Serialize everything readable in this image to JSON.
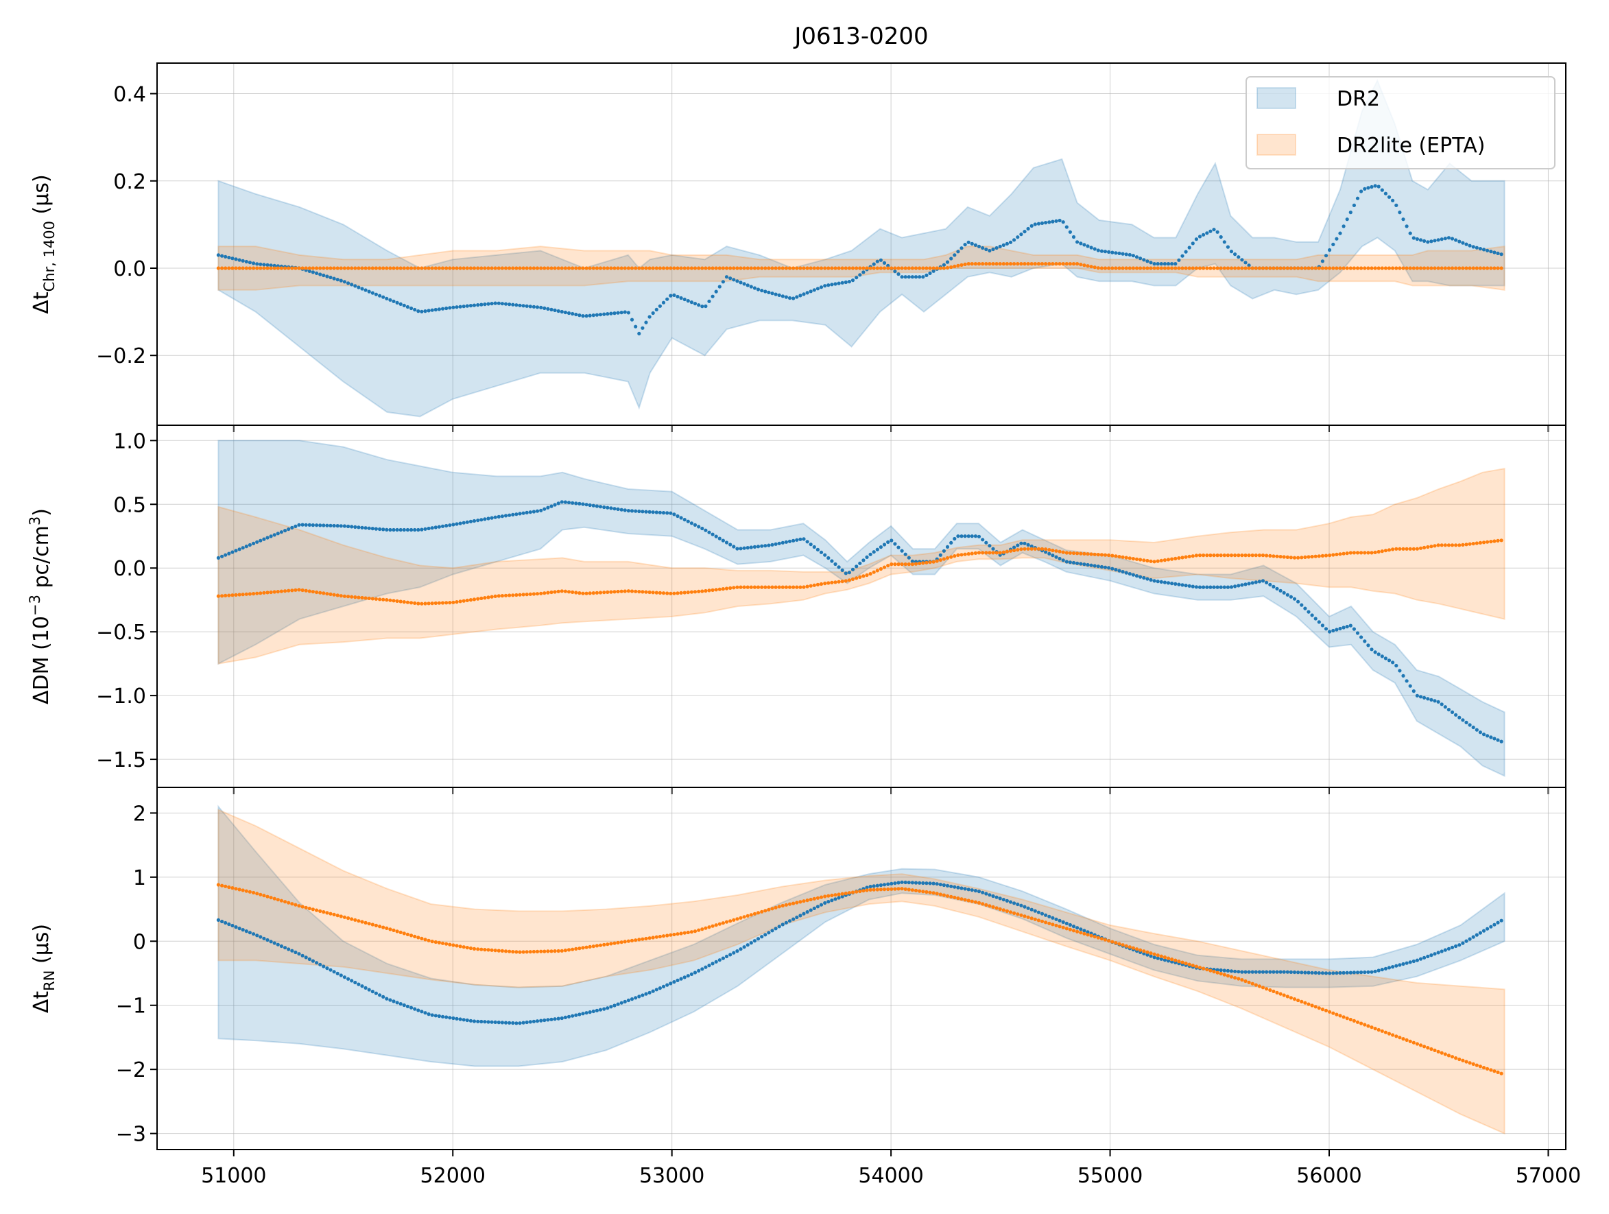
{
  "figure_title": "J0613-0200",
  "colors": {
    "dr2": "#1f77b4",
    "dr2lite": "#ff7f0e"
  },
  "legend": {
    "placement": "top-right",
    "entries": [
      "DR2",
      "DR2lite (EPTA)"
    ]
  },
  "x_ticks": [
    51000,
    52000,
    53000,
    54000,
    55000,
    56000,
    57000
  ],
  "x_tick_labels": [
    "51000",
    "52000",
    "53000",
    "54000",
    "55000",
    "56000",
    "57000"
  ],
  "chart_data": [
    {
      "type": "area",
      "ylabel": {
        "main": "Δt",
        "sub": "Chr, 1400",
        "tail": " (μs)"
      },
      "grid": true,
      "xlim": [
        50650,
        57080
      ],
      "ylim": [
        -0.36,
        0.47
      ],
      "yticks": [
        -0.2,
        0.0,
        0.2,
        0.4
      ],
      "ytick_labels": [
        "−0.2",
        "0.0",
        "0.2",
        "0.4"
      ],
      "x": [
        50930,
        51100,
        51300,
        51500,
        51700,
        51850,
        52000,
        52200,
        52400,
        52600,
        52800,
        52850,
        52900,
        53000,
        53150,
        53250,
        53400,
        53550,
        53700,
        53820,
        53950,
        54050,
        54150,
        54250,
        54350,
        54450,
        54550,
        54650,
        54780,
        54850,
        54950,
        55100,
        55200,
        55300,
        55400,
        55480,
        55550,
        55650,
        55750,
        55850,
        55950,
        56050,
        56150,
        56220,
        56300,
        56380,
        56450,
        56550,
        56650,
        56800
      ],
      "series": [
        {
          "name": "DR2",
          "values": [
            0.03,
            0.01,
            0.0,
            -0.03,
            -0.07,
            -0.1,
            -0.09,
            -0.08,
            -0.09,
            -0.11,
            -0.1,
            -0.15,
            -0.11,
            -0.06,
            -0.09,
            -0.02,
            -0.05,
            -0.07,
            -0.04,
            -0.03,
            0.02,
            -0.02,
            -0.02,
            0.01,
            0.06,
            0.04,
            0.06,
            0.1,
            0.11,
            0.06,
            0.04,
            0.03,
            0.01,
            0.01,
            0.07,
            0.09,
            0.04,
            0.0,
            0.0,
            0.0,
            0.0,
            0.08,
            0.18,
            0.19,
            0.15,
            0.07,
            0.06,
            0.07,
            0.05,
            0.03
          ],
          "lower": [
            -0.05,
            -0.1,
            -0.18,
            -0.26,
            -0.33,
            -0.34,
            -0.3,
            -0.27,
            -0.24,
            -0.24,
            -0.26,
            -0.32,
            -0.24,
            -0.16,
            -0.2,
            -0.14,
            -0.12,
            -0.12,
            -0.13,
            -0.18,
            -0.1,
            -0.06,
            -0.1,
            -0.06,
            -0.02,
            -0.01,
            -0.02,
            0.0,
            0.01,
            -0.02,
            -0.03,
            -0.03,
            -0.04,
            -0.04,
            0.0,
            0.01,
            -0.04,
            -0.07,
            -0.05,
            -0.06,
            -0.05,
            -0.01,
            0.05,
            0.07,
            0.04,
            -0.03,
            -0.03,
            -0.04,
            -0.04,
            -0.04
          ],
          "upper": [
            0.2,
            0.17,
            0.14,
            0.1,
            0.04,
            0.0,
            0.02,
            0.03,
            0.04,
            0.0,
            0.03,
            0.0,
            0.02,
            0.03,
            0.02,
            0.05,
            0.03,
            0.0,
            0.02,
            0.04,
            0.09,
            0.07,
            0.08,
            0.09,
            0.14,
            0.12,
            0.17,
            0.23,
            0.25,
            0.15,
            0.11,
            0.1,
            0.07,
            0.07,
            0.17,
            0.24,
            0.12,
            0.07,
            0.07,
            0.06,
            0.06,
            0.18,
            0.36,
            0.43,
            0.33,
            0.2,
            0.18,
            0.24,
            0.2,
            0.2
          ]
        },
        {
          "name": "DR2lite (EPTA)",
          "values": [
            0.0,
            0.0,
            0.0,
            0.0,
            0.0,
            0.0,
            0.0,
            0.0,
            0.0,
            0.0,
            0.0,
            0.0,
            0.0,
            0.0,
            0.0,
            0.0,
            0.0,
            0.0,
            0.0,
            0.0,
            0.0,
            0.0,
            0.0,
            0.0,
            0.01,
            0.01,
            0.01,
            0.01,
            0.01,
            0.01,
            0.0,
            0.0,
            0.0,
            0.0,
            0.0,
            0.0,
            0.0,
            0.0,
            0.0,
            0.0,
            0.0,
            0.0,
            0.0,
            0.0,
            0.0,
            0.0,
            0.0,
            0.0,
            0.0,
            0.0
          ],
          "lower": [
            -0.05,
            -0.05,
            -0.04,
            -0.04,
            -0.04,
            -0.04,
            -0.04,
            -0.04,
            -0.04,
            -0.04,
            -0.03,
            -0.03,
            -0.03,
            -0.03,
            -0.03,
            -0.03,
            -0.02,
            -0.02,
            -0.02,
            -0.02,
            -0.01,
            -0.01,
            -0.01,
            0.0,
            0.0,
            0.0,
            0.0,
            0.0,
            0.0,
            0.0,
            -0.01,
            -0.01,
            -0.01,
            -0.01,
            -0.02,
            -0.02,
            -0.02,
            -0.02,
            -0.02,
            -0.02,
            -0.03,
            -0.03,
            -0.03,
            -0.03,
            -0.03,
            -0.04,
            -0.04,
            -0.04,
            -0.04,
            -0.05
          ],
          "upper": [
            0.05,
            0.05,
            0.03,
            0.02,
            0.02,
            0.03,
            0.04,
            0.04,
            0.05,
            0.04,
            0.04,
            0.04,
            0.04,
            0.03,
            0.03,
            0.03,
            0.02,
            0.02,
            0.02,
            0.02,
            0.02,
            0.02,
            0.02,
            0.03,
            0.05,
            0.05,
            0.04,
            0.03,
            0.03,
            0.03,
            0.02,
            0.02,
            0.02,
            0.02,
            0.02,
            0.02,
            0.02,
            0.02,
            0.02,
            0.02,
            0.03,
            0.03,
            0.03,
            0.03,
            0.03,
            0.03,
            0.04,
            0.04,
            0.04,
            0.05
          ]
        }
      ]
    },
    {
      "type": "area",
      "ylabel": {
        "main": "ΔDM (10",
        "sup": "−3",
        "mid": " pc/cm",
        "sup2": "3",
        "tail": ")"
      },
      "grid": true,
      "xlim": [
        50650,
        57080
      ],
      "ylim": [
        -1.72,
        1.12
      ],
      "yticks": [
        -1.5,
        -1.0,
        -0.5,
        0.0,
        0.5,
        1.0
      ],
      "ytick_labels": [
        "−1.5",
        "−1.0",
        "−0.5",
        "0.0",
        "0.5",
        "1.0"
      ],
      "x": [
        50930,
        51100,
        51300,
        51500,
        51700,
        51850,
        52000,
        52200,
        52400,
        52500,
        52600,
        52800,
        53000,
        53150,
        53300,
        53450,
        53600,
        53700,
        53800,
        53900,
        54000,
        54100,
        54200,
        54300,
        54400,
        54500,
        54600,
        54700,
        54800,
        55000,
        55200,
        55400,
        55550,
        55700,
        55850,
        56000,
        56100,
        56200,
        56300,
        56400,
        56500,
        56600,
        56700,
        56800
      ],
      "series": [
        {
          "name": "DR2",
          "values": [
            0.08,
            0.2,
            0.34,
            0.33,
            0.3,
            0.3,
            0.34,
            0.4,
            0.45,
            0.52,
            0.5,
            0.45,
            0.43,
            0.3,
            0.15,
            0.18,
            0.23,
            0.1,
            -0.05,
            0.1,
            0.22,
            0.05,
            0.05,
            0.25,
            0.25,
            0.1,
            0.2,
            0.13,
            0.05,
            0.0,
            -0.1,
            -0.15,
            -0.15,
            -0.1,
            -0.25,
            -0.5,
            -0.45,
            -0.65,
            -0.75,
            -1.0,
            -1.05,
            -1.18,
            -1.3,
            -1.37
          ],
          "lower": [
            -0.75,
            -0.6,
            -0.4,
            -0.3,
            -0.2,
            -0.15,
            -0.05,
            0.05,
            0.15,
            0.3,
            0.32,
            0.27,
            0.25,
            0.15,
            0.03,
            0.05,
            0.1,
            0.0,
            -0.12,
            0.0,
            0.1,
            -0.05,
            -0.05,
            0.15,
            0.15,
            0.02,
            0.12,
            0.05,
            -0.03,
            -0.1,
            -0.2,
            -0.25,
            -0.25,
            -0.22,
            -0.38,
            -0.62,
            -0.6,
            -0.8,
            -0.9,
            -1.2,
            -1.3,
            -1.4,
            -1.55,
            -1.63
          ],
          "upper": [
            1.0,
            1.0,
            1.0,
            0.95,
            0.85,
            0.8,
            0.75,
            0.72,
            0.72,
            0.75,
            0.7,
            0.62,
            0.6,
            0.45,
            0.3,
            0.3,
            0.35,
            0.22,
            0.05,
            0.2,
            0.33,
            0.15,
            0.15,
            0.35,
            0.35,
            0.2,
            0.3,
            0.22,
            0.14,
            0.1,
            0.0,
            -0.05,
            -0.05,
            0.02,
            -0.12,
            -0.38,
            -0.3,
            -0.5,
            -0.6,
            -0.8,
            -0.85,
            -0.95,
            -1.05,
            -1.13
          ]
        },
        {
          "name": "DR2lite (EPTA)",
          "values": [
            -0.22,
            -0.2,
            -0.17,
            -0.22,
            -0.25,
            -0.28,
            -0.27,
            -0.22,
            -0.2,
            -0.18,
            -0.2,
            -0.18,
            -0.2,
            -0.18,
            -0.15,
            -0.15,
            -0.15,
            -0.12,
            -0.1,
            -0.05,
            0.03,
            0.03,
            0.05,
            0.1,
            0.12,
            0.12,
            0.15,
            0.15,
            0.12,
            0.1,
            0.05,
            0.1,
            0.1,
            0.1,
            0.08,
            0.1,
            0.12,
            0.12,
            0.15,
            0.15,
            0.18,
            0.18,
            0.2,
            0.22
          ],
          "lower": [
            -0.75,
            -0.7,
            -0.6,
            -0.58,
            -0.55,
            -0.55,
            -0.52,
            -0.48,
            -0.45,
            -0.43,
            -0.42,
            -0.4,
            -0.38,
            -0.35,
            -0.3,
            -0.28,
            -0.25,
            -0.2,
            -0.17,
            -0.12,
            -0.05,
            -0.03,
            0.0,
            0.05,
            0.07,
            0.07,
            0.08,
            0.08,
            0.04,
            -0.02,
            -0.08,
            -0.05,
            -0.08,
            -0.1,
            -0.12,
            -0.15,
            -0.15,
            -0.18,
            -0.2,
            -0.25,
            -0.28,
            -0.32,
            -0.36,
            -0.4
          ],
          "upper": [
            0.48,
            0.4,
            0.3,
            0.18,
            0.08,
            0.02,
            0.0,
            0.05,
            0.07,
            0.08,
            0.05,
            0.05,
            0.0,
            0.0,
            -0.02,
            -0.02,
            -0.03,
            -0.03,
            -0.03,
            0.03,
            0.1,
            0.1,
            0.12,
            0.16,
            0.18,
            0.18,
            0.22,
            0.22,
            0.22,
            0.22,
            0.2,
            0.25,
            0.28,
            0.3,
            0.3,
            0.35,
            0.4,
            0.42,
            0.5,
            0.55,
            0.62,
            0.68,
            0.75,
            0.78
          ]
        }
      ]
    },
    {
      "type": "area",
      "ylabel": {
        "main": "Δt",
        "sub": "RN",
        "tail": " (μs)"
      },
      "grid": true,
      "xlim": [
        50650,
        57080
      ],
      "ylim": [
        -3.25,
        2.4
      ],
      "yticks": [
        -3,
        -2,
        -1,
        0,
        1,
        2
      ],
      "ytick_labels": [
        "−3",
        "−2",
        "−1",
        "0",
        "1",
        "2"
      ],
      "x": [
        50930,
        51100,
        51300,
        51500,
        51700,
        51900,
        52100,
        52300,
        52500,
        52700,
        52900,
        53100,
        53300,
        53500,
        53700,
        53900,
        54050,
        54200,
        54400,
        54600,
        54800,
        55000,
        55200,
        55400,
        55600,
        55800,
        56000,
        56200,
        56400,
        56600,
        56800
      ],
      "series": [
        {
          "name": "DR2",
          "values": [
            0.33,
            0.1,
            -0.2,
            -0.55,
            -0.9,
            -1.15,
            -1.25,
            -1.28,
            -1.2,
            -1.05,
            -0.8,
            -0.5,
            -0.15,
            0.25,
            0.6,
            0.85,
            0.92,
            0.9,
            0.78,
            0.55,
            0.28,
            0.0,
            -0.25,
            -0.42,
            -0.48,
            -0.48,
            -0.5,
            -0.48,
            -0.3,
            -0.05,
            0.35
          ],
          "lower": [
            -1.52,
            -1.55,
            -1.6,
            -1.68,
            -1.78,
            -1.88,
            -1.95,
            -1.95,
            -1.88,
            -1.7,
            -1.42,
            -1.1,
            -0.7,
            -0.2,
            0.3,
            0.65,
            0.75,
            0.72,
            0.58,
            0.35,
            0.05,
            -0.2,
            -0.45,
            -0.62,
            -0.7,
            -0.72,
            -0.72,
            -0.7,
            -0.55,
            -0.3,
            0.0
          ],
          "upper": [
            2.1,
            1.4,
            0.6,
            0.0,
            -0.35,
            -0.58,
            -0.68,
            -0.72,
            -0.7,
            -0.55,
            -0.3,
            -0.05,
            0.28,
            0.6,
            0.88,
            1.05,
            1.13,
            1.12,
            1.0,
            0.78,
            0.5,
            0.2,
            -0.05,
            -0.22,
            -0.28,
            -0.28,
            -0.28,
            -0.25,
            -0.05,
            0.25,
            0.75
          ]
        },
        {
          "name": "DR2lite (EPTA)",
          "values": [
            0.88,
            0.75,
            0.55,
            0.38,
            0.2,
            0.0,
            -0.12,
            -0.17,
            -0.15,
            -0.05,
            0.05,
            0.15,
            0.35,
            0.55,
            0.7,
            0.8,
            0.82,
            0.75,
            0.6,
            0.4,
            0.2,
            0.0,
            -0.2,
            -0.4,
            -0.6,
            -0.85,
            -1.1,
            -1.35,
            -1.6,
            -1.85,
            -2.08
          ],
          "lower": [
            -0.3,
            -0.3,
            -0.35,
            -0.4,
            -0.5,
            -0.6,
            -0.68,
            -0.72,
            -0.7,
            -0.55,
            -0.45,
            -0.3,
            -0.05,
            0.25,
            0.45,
            0.58,
            0.62,
            0.55,
            0.38,
            0.15,
            -0.08,
            -0.3,
            -0.55,
            -0.78,
            -1.05,
            -1.35,
            -1.65,
            -2.0,
            -2.35,
            -2.7,
            -3.0
          ],
          "upper": [
            2.05,
            1.8,
            1.45,
            1.1,
            0.82,
            0.58,
            0.5,
            0.47,
            0.47,
            0.5,
            0.55,
            0.62,
            0.72,
            0.85,
            0.95,
            1.02,
            1.05,
            0.97,
            0.82,
            0.65,
            0.45,
            0.25,
            0.12,
            0.0,
            -0.15,
            -0.3,
            -0.45,
            -0.55,
            -0.65,
            -0.7,
            -0.75
          ]
        }
      ]
    }
  ]
}
